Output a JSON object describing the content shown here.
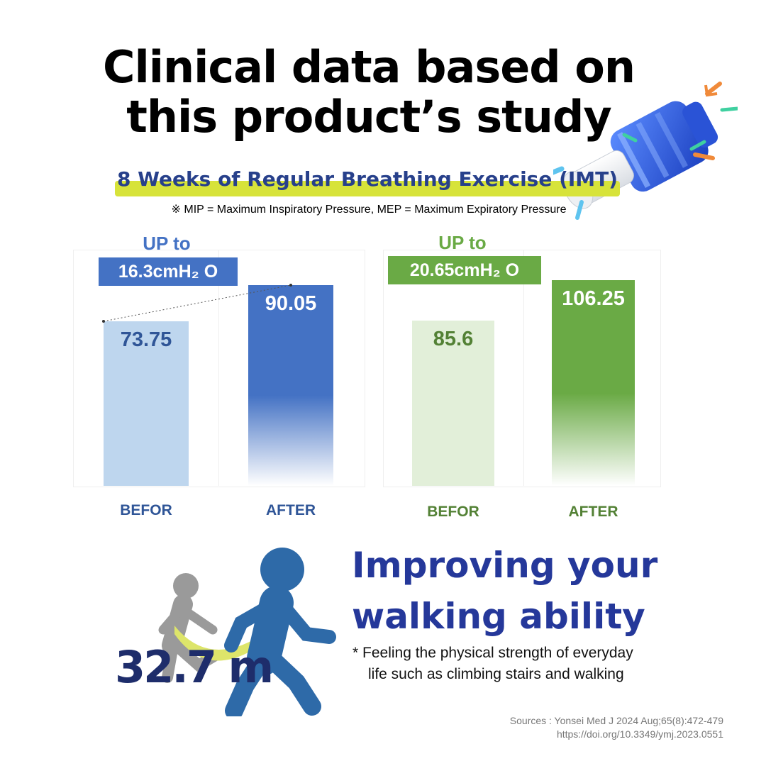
{
  "title": {
    "line1": "Clinical data based on",
    "line2": "this product’s study"
  },
  "subtitle": "8 Weeks of Regular Breathing Exercise (IMT)",
  "note": "※ MIP = Maximum Inspiratory Pressure, MEP = Maximum Expiratory Pressure",
  "colors": {
    "blue_dark": "#4472c4",
    "blue_light": "#bed6ee",
    "blue_text": "#2f5597",
    "green_dark": "#6aaa45",
    "green_light": "#e2efd9",
    "green_text": "#538135",
    "headline": "#25389a"
  },
  "chart_data": [
    {
      "type": "bar",
      "up_label": "UP to",
      "badge": "16.3cmH₂ O",
      "categories": [
        "BEFOR",
        "AFTER"
      ],
      "values": [
        73.75,
        90.05
      ],
      "value_labels": [
        "73.75",
        "90.05"
      ],
      "ylim": [
        0,
        105
      ]
    },
    {
      "type": "bar",
      "up_label": "UP to",
      "badge": "20.65cmH₂ O",
      "categories": [
        "BEFOR",
        "AFTER"
      ],
      "values": [
        85.6,
        106.25
      ],
      "value_labels": [
        "85.6",
        "106.25"
      ],
      "ylim": [
        0,
        121
      ]
    }
  ],
  "walking": {
    "distance": "32.7 m",
    "headline1": "Improving your",
    "headline2": "walking ability",
    "desc_line1": "* Feeling the physical strength of everyday",
    "desc_line2": "life such as climbing stairs and walking",
    "icons": [
      "walking-person-gray-icon",
      "walking-person-blue-icon",
      "curved-arrow-icon"
    ]
  },
  "sources": {
    "line1": "Sources : Yonsei Med J 2024 Aug;65(8):472-479",
    "line2": "https://doi.org/10.3349/ymj.2023.0551"
  },
  "product": {
    "icon": "breathing-trainer-device-icon"
  }
}
